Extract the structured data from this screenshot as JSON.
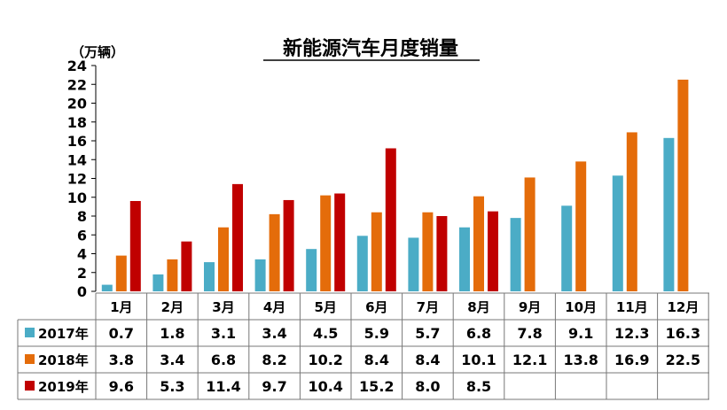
{
  "chart_data": {
    "type": "bar",
    "title": "新能源汽车月度销量",
    "unit_label": "（万辆）",
    "ylim": [
      0,
      24
    ],
    "yticks": [
      0,
      2,
      4,
      6,
      8,
      10,
      12,
      14,
      16,
      18,
      20,
      22,
      24
    ],
    "categories": [
      "1月",
      "2月",
      "3月",
      "4月",
      "5月",
      "6月",
      "7月",
      "8月",
      "9月",
      "10月",
      "11月",
      "12月"
    ],
    "series": [
      {
        "name": "2017年",
        "color": "#4bacc6",
        "values": [
          0.7,
          1.8,
          3.1,
          3.4,
          4.5,
          5.9,
          5.7,
          6.8,
          7.8,
          9.1,
          12.3,
          16.3
        ]
      },
      {
        "name": "2018年",
        "color": "#e46c0a",
        "values": [
          3.8,
          3.4,
          6.8,
          8.2,
          10.2,
          8.4,
          8.4,
          10.1,
          12.1,
          13.8,
          16.9,
          22.5
        ]
      },
      {
        "name": "2019年",
        "color": "#c00000",
        "values": [
          9.6,
          5.3,
          11.4,
          9.7,
          10.4,
          15.2,
          8.0,
          8.5,
          null,
          null,
          null,
          null
        ]
      }
    ],
    "grid": false,
    "legend": "data-table"
  }
}
